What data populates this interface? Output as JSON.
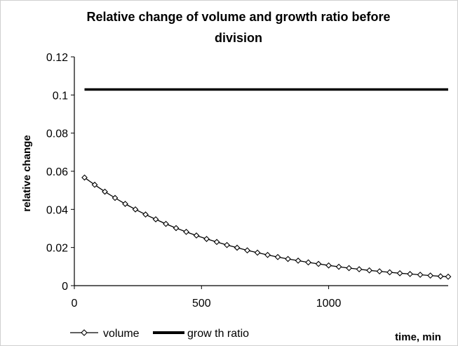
{
  "chart_data": {
    "type": "line",
    "title_line1": "Relative change of volume and growth ratio before",
    "title_line2": "division",
    "xlabel": "time, min",
    "ylabel": "relative change",
    "xlim": [
      0,
      1470
    ],
    "ylim": [
      0,
      0.12
    ],
    "xticks": [
      0,
      500,
      1000
    ],
    "xtick_labels": [
      "0",
      "500",
      "1000"
    ],
    "yticks": [
      0,
      0.02,
      0.04,
      0.06,
      0.08,
      0.1,
      0.12
    ],
    "ytick_labels": [
      "0",
      "0.02",
      "0.04",
      "0.06",
      "0.08",
      "0.1",
      "0.12"
    ],
    "grid": false,
    "legend_position": "bottom",
    "series": [
      {
        "name": "volume",
        "marker": "diamond",
        "color": "#000000",
        "x": [
          40,
          80,
          120,
          160,
          200,
          240,
          280,
          320,
          360,
          400,
          440,
          480,
          520,
          560,
          600,
          640,
          680,
          720,
          760,
          800,
          840,
          880,
          920,
          960,
          1000,
          1040,
          1080,
          1120,
          1160,
          1200,
          1240,
          1280,
          1320,
          1360,
          1400,
          1440,
          1470
        ],
        "y": [
          0.0567,
          0.0529,
          0.0493,
          0.046,
          0.0429,
          0.04,
          0.0373,
          0.0348,
          0.0324,
          0.0302,
          0.0282,
          0.0263,
          0.0245,
          0.0229,
          0.0213,
          0.0199,
          0.0185,
          0.0173,
          0.0161,
          0.015,
          0.014,
          0.0131,
          0.0122,
          0.0114,
          0.0106,
          0.0099,
          0.0092,
          0.0086,
          0.008,
          0.0075,
          0.007,
          0.0065,
          0.0061,
          0.0057,
          0.0053,
          0.0049,
          0.0047
        ]
      },
      {
        "name": "grow th ratio",
        "marker": "none",
        "color": "#000000",
        "x": [
          40,
          1470
        ],
        "y": [
          0.1029,
          0.1029
        ]
      }
    ]
  }
}
